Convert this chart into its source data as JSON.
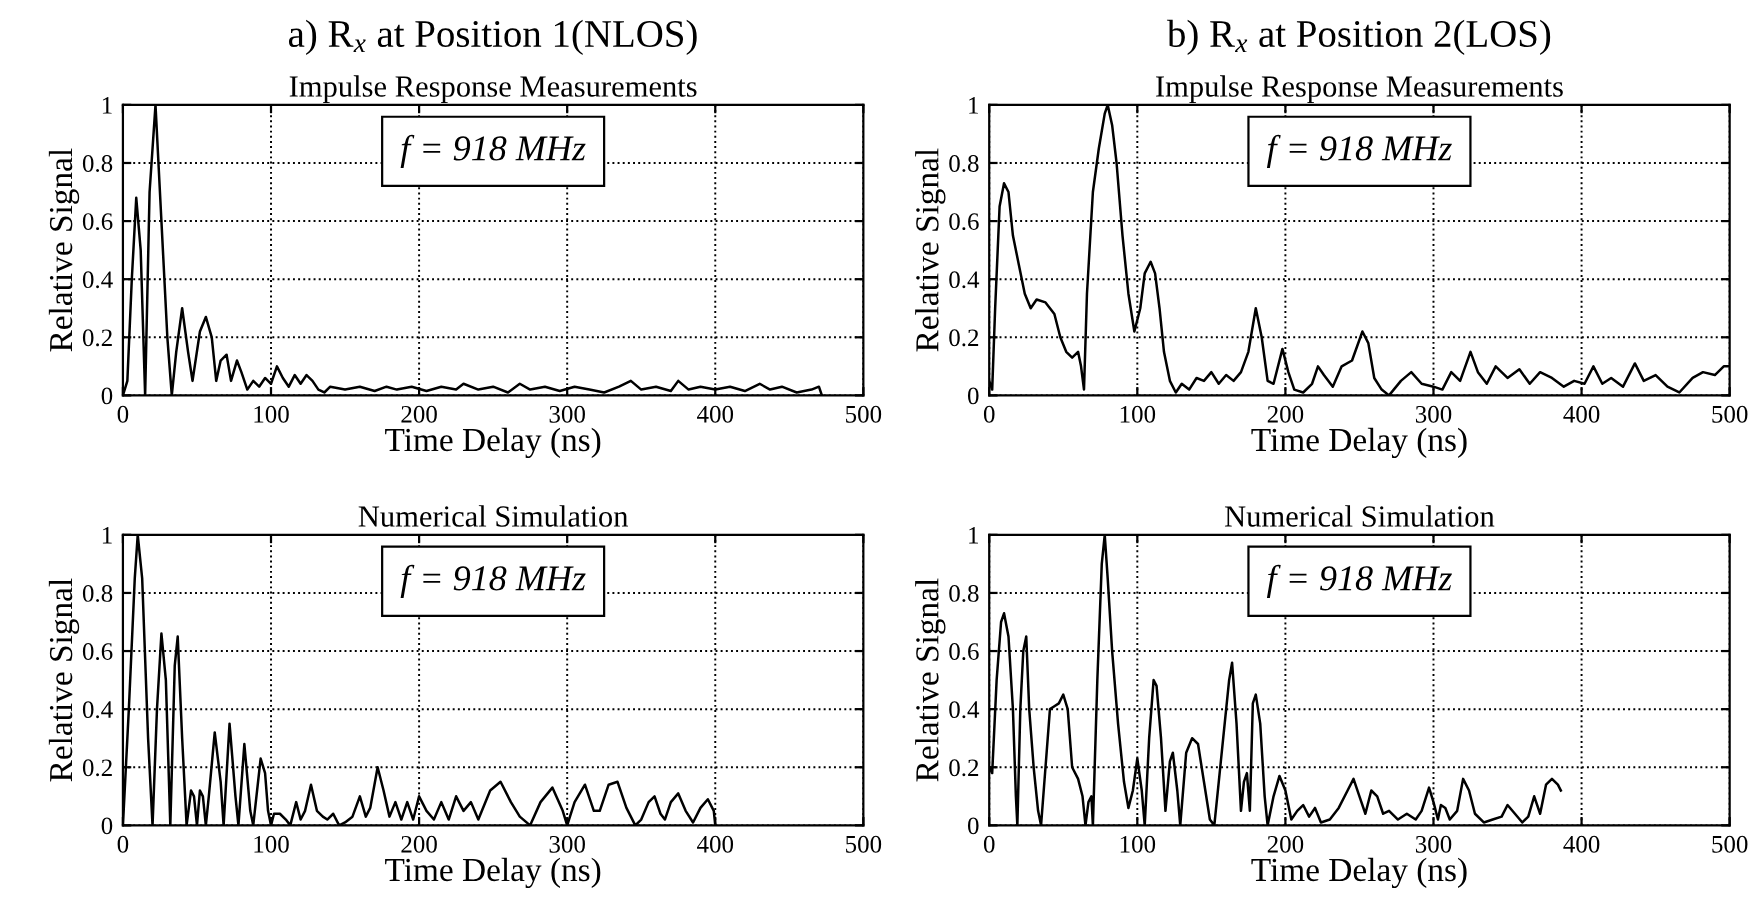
{
  "chart_data": [
    {
      "type": "line",
      "title": "a) R$_{x}$ at Position 1(NLOS)",
      "subtitle": "Impulse Response Measurements",
      "xlabel": "Time Delay (ns)",
      "ylabel": "Relative Signal",
      "annotations": [
        "f = 918 MHz"
      ],
      "xlim": [
        0,
        500
      ],
      "ylim": [
        0,
        1
      ],
      "xticks": [
        0,
        100,
        200,
        300,
        400,
        500
      ],
      "yticks": [
        0,
        0.2,
        0.4,
        0.6,
        0.8,
        1
      ],
      "grid": true,
      "line_style": "solid",
      "marker": "none",
      "series": [
        {
          "color": "#000000",
          "x": [
            0,
            3,
            6,
            9,
            12,
            15,
            18,
            22,
            26,
            30,
            33,
            36,
            40,
            44,
            47,
            52,
            56,
            60,
            63,
            66,
            70,
            73,
            77,
            80,
            84,
            88,
            92,
            96,
            100,
            104,
            108,
            112,
            116,
            120,
            124,
            128,
            132,
            136,
            140,
            150,
            160,
            170,
            178,
            185,
            195,
            205,
            215,
            225,
            230,
            240,
            250,
            260,
            268,
            275,
            285,
            295,
            305,
            315,
            325,
            335,
            343,
            350,
            360,
            370,
            375,
            382,
            390,
            400,
            410,
            420,
            430,
            437,
            445,
            455,
            465,
            470,
            472
          ],
          "values": [
            0,
            0.05,
            0.4,
            0.68,
            0.5,
            0,
            0.7,
            1.0,
            0.6,
            0.2,
            0,
            0.15,
            0.3,
            0.15,
            0.05,
            0.22,
            0.27,
            0.2,
            0.05,
            0.12,
            0.14,
            0.05,
            0.12,
            0.08,
            0.02,
            0.05,
            0.03,
            0.06,
            0.04,
            0.1,
            0.06,
            0.03,
            0.07,
            0.04,
            0.07,
            0.05,
            0.02,
            0.01,
            0.03,
            0.02,
            0.03,
            0.015,
            0.03,
            0.02,
            0.03,
            0.015,
            0.03,
            0.02,
            0.04,
            0.02,
            0.03,
            0.01,
            0.04,
            0.02,
            0.03,
            0.015,
            0.03,
            0.02,
            0.01,
            0.03,
            0.05,
            0.02,
            0.03,
            0.015,
            0.05,
            0.02,
            0.03,
            0.02,
            0.03,
            0.015,
            0.04,
            0.02,
            0.03,
            0.01,
            0.02,
            0.03,
            0
          ]
        }
      ]
    },
    {
      "type": "line",
      "title": "b) R$_{x}$ at Position 2(LOS)",
      "subtitle": "Impulse Response Measurements",
      "xlabel": "Time Delay (ns)",
      "ylabel": "Relative Signal",
      "annotations": [
        "f = 918 MHz"
      ],
      "xlim": [
        0,
        500
      ],
      "ylim": [
        0,
        1
      ],
      "xticks": [
        0,
        100,
        200,
        300,
        400,
        500
      ],
      "yticks": [
        0,
        0.2,
        0.4,
        0.6,
        0.8,
        1
      ],
      "grid": true,
      "line_style": "solid",
      "marker": "none",
      "series": [
        {
          "color": "#000000",
          "x": [
            0,
            2,
            4,
            7,
            10,
            13,
            16,
            20,
            24,
            28,
            32,
            38,
            44,
            48,
            52,
            56,
            60,
            62,
            64,
            66,
            70,
            74,
            78,
            80,
            83,
            86,
            90,
            94,
            98,
            102,
            105,
            109,
            112,
            115,
            118,
            122,
            126,
            130,
            135,
            140,
            145,
            150,
            155,
            160,
            165,
            170,
            175,
            180,
            184,
            188,
            192,
            198,
            202,
            206,
            212,
            218,
            222,
            226,
            232,
            238,
            245,
            252,
            256,
            260,
            265,
            270,
            278,
            285,
            292,
            300,
            306,
            312,
            318,
            325,
            330,
            336,
            342,
            350,
            358,
            365,
            372,
            380,
            388,
            395,
            402,
            408,
            414,
            420,
            428,
            436,
            442,
            450,
            458,
            466,
            475,
            482,
            490,
            496,
            500
          ],
          "values": [
            0.05,
            0.02,
            0.3,
            0.65,
            0.73,
            0.7,
            0.55,
            0.45,
            0.35,
            0.3,
            0.33,
            0.32,
            0.28,
            0.2,
            0.15,
            0.13,
            0.15,
            0.1,
            0.02,
            0.35,
            0.7,
            0.85,
            0.97,
            1.0,
            0.93,
            0.8,
            0.55,
            0.35,
            0.22,
            0.3,
            0.42,
            0.46,
            0.42,
            0.3,
            0.15,
            0.05,
            0.01,
            0.04,
            0.02,
            0.06,
            0.05,
            0.08,
            0.04,
            0.07,
            0.05,
            0.08,
            0.15,
            0.3,
            0.2,
            0.05,
            0.04,
            0.16,
            0.08,
            0.02,
            0.01,
            0.04,
            0.1,
            0.07,
            0.03,
            0.1,
            0.12,
            0.22,
            0.18,
            0.06,
            0.02,
            0.0,
            0.05,
            0.08,
            0.04,
            0.03,
            0.02,
            0.08,
            0.05,
            0.15,
            0.08,
            0.04,
            0.1,
            0.06,
            0.09,
            0.04,
            0.08,
            0.06,
            0.03,
            0.05,
            0.04,
            0.1,
            0.04,
            0.06,
            0.03,
            0.11,
            0.05,
            0.07,
            0.03,
            0.01,
            0.06,
            0.08,
            0.07,
            0.1,
            0.1
          ]
        }
      ]
    },
    {
      "type": "line",
      "title": "Numerical Simulation",
      "xlabel": "Time Delay (ns)",
      "ylabel": "Relative Signal",
      "annotations": [
        "f = 918 MHz"
      ],
      "xlim": [
        0,
        500
      ],
      "ylim": [
        0,
        1
      ],
      "xticks": [
        0,
        100,
        200,
        300,
        400,
        500
      ],
      "yticks": [
        0,
        0.2,
        0.4,
        0.6,
        0.8,
        1
      ],
      "grid": true,
      "line_style": "solid",
      "marker": "none",
      "series": [
        {
          "color": "#000000",
          "x": [
            0,
            4,
            8,
            10,
            13,
            17,
            20,
            23,
            26,
            29,
            32,
            35,
            37,
            40,
            43,
            46,
            48,
            50,
            52,
            54,
            56,
            58,
            62,
            66,
            68,
            72,
            76,
            78,
            82,
            86,
            88,
            93,
            96,
            98,
            100,
            102,
            106,
            110,
            113,
            117,
            120,
            123,
            127,
            131,
            135,
            138,
            142,
            146,
            150,
            155,
            160,
            164,
            167,
            172,
            176,
            180,
            184,
            188,
            192,
            196,
            200,
            205,
            210,
            215,
            220,
            225,
            230,
            235,
            240,
            248,
            255,
            262,
            268,
            275,
            282,
            290,
            297,
            300,
            305,
            312,
            318,
            322,
            328,
            334,
            340,
            346,
            350,
            355,
            359,
            363,
            366,
            370,
            375,
            380,
            385,
            390,
            395,
            399,
            400
          ],
          "values": [
            0,
            0.4,
            0.85,
            1.0,
            0.85,
            0.3,
            0,
            0.4,
            0.66,
            0.5,
            0,
            0.55,
            0.65,
            0.3,
            0,
            0.12,
            0.1,
            0,
            0.12,
            0.1,
            0,
            0.1,
            0.32,
            0.15,
            0,
            0.35,
            0.1,
            0,
            0.28,
            0.05,
            0,
            0.23,
            0.18,
            0.05,
            0,
            0.04,
            0.04,
            0.02,
            0,
            0.08,
            0.02,
            0.05,
            0.14,
            0.05,
            0.03,
            0.02,
            0.04,
            0,
            0.01,
            0.03,
            0.1,
            0.03,
            0.06,
            0.2,
            0.12,
            0.03,
            0.08,
            0.02,
            0.08,
            0.02,
            0.1,
            0.05,
            0.02,
            0.08,
            0.02,
            0.1,
            0.05,
            0.08,
            0.02,
            0.12,
            0.15,
            0.08,
            0.03,
            0.0,
            0.08,
            0.13,
            0.05,
            0.0,
            0.08,
            0.14,
            0.05,
            0.05,
            0.14,
            0.15,
            0.06,
            0.0,
            0.02,
            0.08,
            0.1,
            0.04,
            0.02,
            0.08,
            0.11,
            0.05,
            0.01,
            0.06,
            0.09,
            0.05,
            0
          ]
        }
      ]
    },
    {
      "type": "line",
      "title": "Numerical Simulation",
      "xlabel": "Time Delay (ns)",
      "ylabel": "Relative Signal",
      "annotations": [
        "f = 918 MHz"
      ],
      "xlim": [
        0,
        500
      ],
      "ylim": [
        0,
        1
      ],
      "xticks": [
        0,
        100,
        200,
        300,
        400,
        500
      ],
      "yticks": [
        0,
        0.2,
        0.4,
        0.6,
        0.8,
        1
      ],
      "grid": true,
      "line_style": "solid",
      "marker": "none",
      "series": [
        {
          "color": "#000000",
          "x": [
            0,
            2,
            5,
            8,
            10,
            13,
            16,
            18,
            19,
            21,
            23,
            25,
            27,
            30,
            33,
            35,
            38,
            41,
            44,
            47,
            50,
            53,
            56,
            60,
            63,
            65,
            67,
            69,
            70,
            73,
            76,
            78,
            80,
            83,
            87,
            91,
            94,
            97,
            100,
            103,
            105,
            108,
            111,
            113,
            116,
            119,
            122,
            124,
            127,
            129,
            133,
            137,
            141,
            145,
            149,
            152,
            155,
            158,
            162,
            164,
            167,
            170,
            172,
            174,
            176,
            178,
            180,
            183,
            186,
            188,
            192,
            196,
            200,
            204,
            208,
            212,
            216,
            220,
            224,
            230,
            236,
            242,
            246,
            250,
            254,
            258,
            262,
            266,
            270,
            276,
            282,
            288,
            292,
            297,
            300,
            303,
            305,
            308,
            311,
            316,
            320,
            324,
            328,
            334,
            340,
            346,
            350,
            355,
            360,
            364,
            368,
            372,
            376,
            380,
            384,
            386
          ],
          "values": [
            0.2,
            0.18,
            0.5,
            0.7,
            0.73,
            0.65,
            0.4,
            0.1,
            0,
            0.4,
            0.6,
            0.65,
            0.4,
            0.2,
            0.05,
            0,
            0.2,
            0.4,
            0.41,
            0.42,
            0.45,
            0.4,
            0.2,
            0.16,
            0.1,
            0,
            0.08,
            0.1,
            0,
            0.5,
            0.9,
            1.0,
            0.85,
            0.6,
            0.35,
            0.15,
            0.06,
            0.12,
            0.23,
            0.12,
            0,
            0.3,
            0.5,
            0.48,
            0.3,
            0.05,
            0.22,
            0.25,
            0.12,
            0,
            0.25,
            0.3,
            0.28,
            0.15,
            0.02,
            0.0,
            0.15,
            0.3,
            0.5,
            0.56,
            0.35,
            0.05,
            0.15,
            0.18,
            0.05,
            0.42,
            0.45,
            0.35,
            0.1,
            0.0,
            0.1,
            0.17,
            0.12,
            0.02,
            0.05,
            0.07,
            0.03,
            0.06,
            0.01,
            0.02,
            0.06,
            0.12,
            0.16,
            0.1,
            0.04,
            0.12,
            0.1,
            0.04,
            0.05,
            0.02,
            0.04,
            0.02,
            0.05,
            0.13,
            0.08,
            0.02,
            0.07,
            0.06,
            0.02,
            0.05,
            0.16,
            0.12,
            0.04,
            0.01,
            0.02,
            0.03,
            0.07,
            0.04,
            0.01,
            0.03,
            0.1,
            0.04,
            0.14,
            0.16,
            0.14,
            0.12
          ]
        }
      ]
    }
  ]
}
